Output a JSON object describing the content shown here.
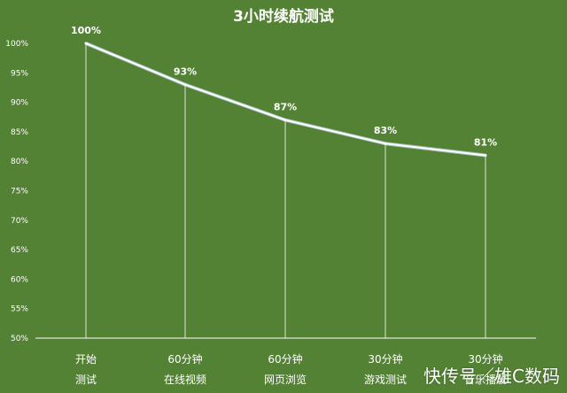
{
  "chart_data": {
    "type": "line",
    "title": "3小时续航测试",
    "categories": [
      [
        "开始",
        "测试"
      ],
      [
        "60分钟",
        "在线视频"
      ],
      [
        "60分钟",
        "网页浏览"
      ],
      [
        "30分钟",
        "游戏测试"
      ],
      [
        "30分钟",
        "音乐播放"
      ]
    ],
    "series": [
      {
        "values": [
          100,
          93,
          87,
          83,
          81
        ]
      }
    ],
    "data_labels": [
      "100%",
      "93%",
      "87%",
      "83%",
      "81%"
    ],
    "ylim": [
      50,
      100
    ],
    "yticks": [
      "50%",
      "55%",
      "60%",
      "65%",
      "70%",
      "75%",
      "80%",
      "85%",
      "90%",
      "95%",
      "100%"
    ],
    "grid": false,
    "drop_lines": true,
    "colors": {
      "background": "#548235",
      "line": "#ffffff",
      "text": "#ffffff"
    }
  },
  "watermark": "快传号／雄C数码"
}
